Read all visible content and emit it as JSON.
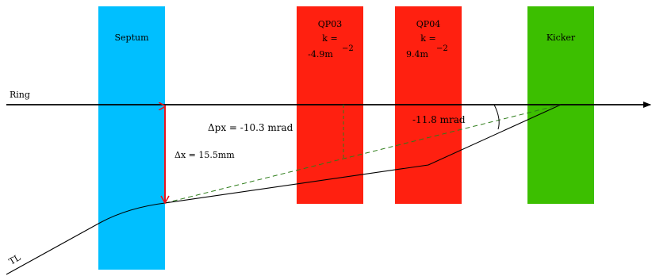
{
  "colors": {
    "septum": "#00bfff",
    "quad": "#ff2010",
    "kicker": "#3cbf00",
    "ring_line": "#000000",
    "tl_line": "#000000",
    "delta_x": "#e8141e",
    "delta_px": "#2e7d1a"
  },
  "elements": {
    "septum": {
      "label": "Septum"
    },
    "qp03": {
      "name": "QP03",
      "k_label": "k =",
      "k_value": "-4.9m",
      "k_exp": "−2"
    },
    "qp04": {
      "name": "QP04",
      "k_label": "k =",
      "k_value": "9.4m",
      "k_exp": "−2"
    },
    "kicker": {
      "label": "Kicker"
    }
  },
  "lines": {
    "ring_label": "Ring",
    "tl_label": "TL"
  },
  "annotations": {
    "delta_x": "Δx = 15.5mm",
    "delta_px": "Δpx = -10.3 mrad",
    "kicker_angle": "-11.8 mrad"
  }
}
